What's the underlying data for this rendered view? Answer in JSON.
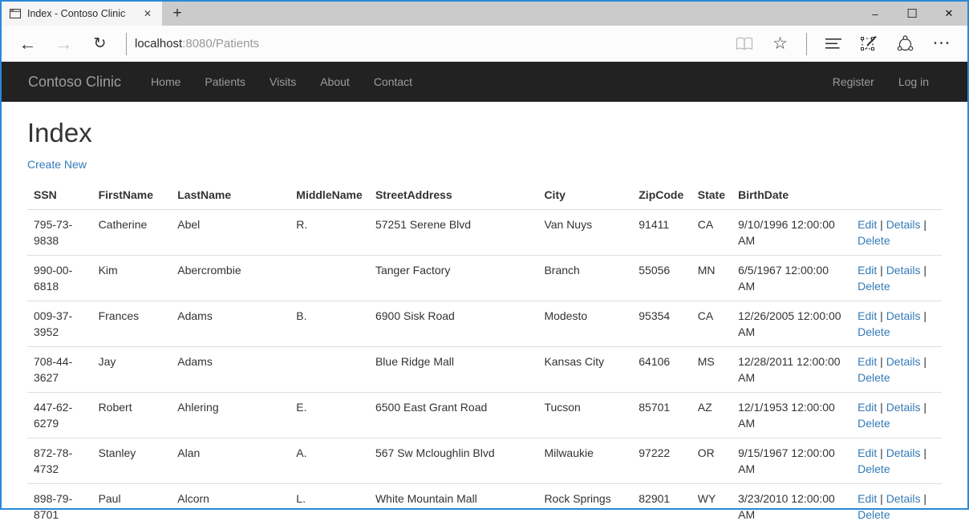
{
  "colors": {
    "accent_border": "#2b88d8",
    "link_blue": "#337ab7",
    "navbar_bg": "#222222",
    "navbar_text": "#9d9d9d"
  },
  "browser": {
    "tab": {
      "title": "Index - Contoso Clinic",
      "close_glyph": "✕"
    },
    "new_tab_glyph": "+",
    "window_controls": {
      "minimize": "–",
      "maximize": "☐",
      "close": "✕"
    },
    "toolbar": {
      "back_glyph": "←",
      "forward_glyph": "→",
      "refresh_glyph": "↻",
      "url_host": "localhost",
      "url_rest": ":8080/Patients",
      "star_glyph": "☆",
      "more_glyph": "•••"
    }
  },
  "navbar": {
    "brand": "Contoso Clinic",
    "items": [
      "Home",
      "Patients",
      "Visits",
      "About",
      "Contact"
    ],
    "right_items": [
      "Register",
      "Log in"
    ]
  },
  "page": {
    "heading": "Index",
    "create_link": "Create New"
  },
  "table": {
    "headers": [
      "SSN",
      "FirstName",
      "LastName",
      "MiddleName",
      "StreetAddress",
      "City",
      "ZipCode",
      "State",
      "BirthDate",
      ""
    ],
    "row_actions": [
      "Edit",
      "Details",
      "Delete"
    ],
    "action_separator": "|",
    "rows": [
      {
        "ssn": "795-73-9838",
        "first": "Catherine",
        "last": "Abel",
        "middle": "R.",
        "street": "57251 Serene Blvd",
        "city": "Van Nuys",
        "zip": "91411",
        "state": "CA",
        "birthdate": "9/10/1996 12:00:00 AM"
      },
      {
        "ssn": "990-00-6818",
        "first": "Kim",
        "last": "Abercrombie",
        "middle": "",
        "street": "Tanger Factory",
        "city": "Branch",
        "zip": "55056",
        "state": "MN",
        "birthdate": "6/5/1967 12:00:00 AM"
      },
      {
        "ssn": "009-37-3952",
        "first": "Frances",
        "last": "Adams",
        "middle": "B.",
        "street": "6900 Sisk Road",
        "city": "Modesto",
        "zip": "95354",
        "state": "CA",
        "birthdate": "12/26/2005 12:00:00 AM"
      },
      {
        "ssn": "708-44-3627",
        "first": "Jay",
        "last": "Adams",
        "middle": "",
        "street": "Blue Ridge Mall",
        "city": "Kansas City",
        "zip": "64106",
        "state": "MS",
        "birthdate": "12/28/2011 12:00:00 AM"
      },
      {
        "ssn": "447-62-6279",
        "first": "Robert",
        "last": "Ahlering",
        "middle": "E.",
        "street": "6500 East Grant Road",
        "city": "Tucson",
        "zip": "85701",
        "state": "AZ",
        "birthdate": "12/1/1953 12:00:00 AM"
      },
      {
        "ssn": "872-78-4732",
        "first": "Stanley",
        "last": "Alan",
        "middle": "A.",
        "street": "567 Sw Mcloughlin Blvd",
        "city": "Milwaukie",
        "zip": "97222",
        "state": "OR",
        "birthdate": "9/15/1967 12:00:00 AM"
      },
      {
        "ssn": "898-79-8701",
        "first": "Paul",
        "last": "Alcorn",
        "middle": "L.",
        "street": "White Mountain Mall",
        "city": "Rock Springs",
        "zip": "82901",
        "state": "WY",
        "birthdate": "3/23/2010 12:00:00 AM"
      }
    ]
  }
}
